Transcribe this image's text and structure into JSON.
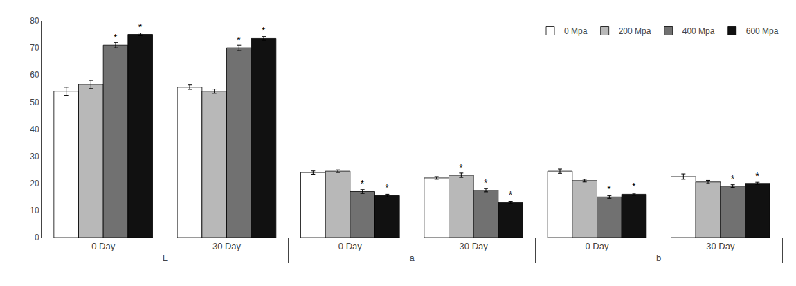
{
  "chart_data": {
    "type": "bar",
    "categories": [
      "0 Day",
      "30 Day",
      "0 Day",
      "30 Day",
      "0 Day",
      "30 Day"
    ],
    "annotations": [
      "L",
      "a",
      "b"
    ],
    "series": [
      {
        "name": "0 Mpa",
        "color": "#ffffff",
        "values": [
          54,
          55.5,
          24,
          22,
          24.5,
          22.5
        ],
        "errors": [
          1.5,
          0.8,
          0.6,
          0.5,
          0.8,
          1.0
        ],
        "annotations": [
          null,
          null,
          null,
          null,
          null,
          null
        ]
      },
      {
        "name": "200 Mpa",
        "color": "#b8b8b8",
        "values": [
          56.5,
          54,
          24.5,
          23,
          21,
          20.5
        ],
        "errors": [
          1.5,
          0.8,
          0.5,
          0.8,
          0.5,
          0.6
        ],
        "annotations": [
          null,
          null,
          null,
          "*",
          null,
          null
        ]
      },
      {
        "name": "400 Mpa",
        "color": "#717171",
        "values": [
          71,
          70,
          17,
          17.5,
          15,
          19
        ],
        "errors": [
          1.0,
          1.0,
          0.7,
          0.6,
          0.5,
          0.5
        ],
        "annotations": [
          "*",
          "*",
          "*",
          "*",
          "*",
          "*"
        ]
      },
      {
        "name": "600 Mpa",
        "color": "#111111",
        "values": [
          75,
          73.5,
          15.5,
          13,
          16,
          20
        ],
        "errors": [
          0.5,
          0.7,
          0.5,
          0.4,
          0.4,
          0.4
        ],
        "annotations": [
          "*",
          "*",
          "*",
          "*",
          "*",
          "*"
        ]
      }
    ],
    "ylim": [
      0,
      80
    ],
    "yticks": [
      0,
      10,
      20,
      30,
      40,
      50,
      60,
      70,
      80
    ],
    "grid": false,
    "legend": "upper right"
  }
}
